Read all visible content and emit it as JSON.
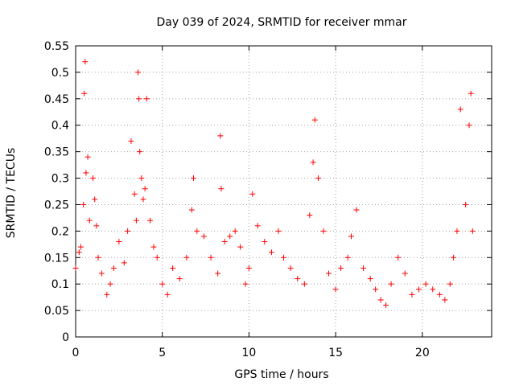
{
  "chart_data": {
    "type": "scatter",
    "title": "Day 039 of 2024, SRMTID for receiver mmar",
    "xlabel": "GPS time / hours",
    "ylabel": "SRMTID / TECUs",
    "xlim": [
      0,
      24
    ],
    "ylim": [
      0,
      0.55
    ],
    "xticks": [
      0,
      5,
      10,
      15,
      20
    ],
    "yticks": [
      0,
      0.05,
      0.1,
      0.15,
      0.2,
      0.25,
      0.3,
      0.35,
      0.4,
      0.45,
      0.5,
      0.55
    ],
    "xtick_labels": [
      "0",
      "5",
      "10",
      "15",
      "20"
    ],
    "ytick_labels": [
      "0",
      "0.05",
      "0.1",
      "0.15",
      "0.2",
      "0.25",
      "0.3",
      "0.35",
      "0.4",
      "0.45",
      "0.5",
      "0.55"
    ],
    "grid": true,
    "marker": "+",
    "color": "#ff0000",
    "series": [
      {
        "name": "SRMTID",
        "x": [
          0.0,
          0.2,
          0.3,
          0.45,
          0.5,
          0.55,
          0.6,
          0.7,
          0.8,
          1.0,
          1.1,
          1.2,
          1.3,
          1.5,
          1.8,
          2.0,
          2.2,
          2.5,
          2.8,
          3.0,
          3.2,
          3.4,
          3.5,
          3.6,
          3.65,
          3.7,
          3.8,
          3.9,
          4.0,
          4.1,
          4.3,
          4.5,
          4.7,
          5.0,
          5.3,
          5.6,
          6.0,
          6.4,
          6.7,
          6.8,
          7.0,
          7.4,
          7.8,
          8.2,
          8.35,
          8.4,
          8.6,
          8.9,
          9.2,
          9.5,
          9.8,
          10.0,
          10.2,
          10.5,
          10.9,
          11.3,
          11.7,
          12.0,
          12.4,
          12.8,
          13.2,
          13.5,
          13.7,
          13.8,
          14.0,
          14.3,
          14.6,
          15.0,
          15.3,
          15.7,
          15.9,
          16.2,
          16.6,
          17.0,
          17.3,
          17.6,
          17.9,
          18.2,
          18.6,
          19.0,
          19.4,
          19.8,
          20.2,
          20.6,
          21.0,
          21.3,
          21.6,
          21.8,
          22.0,
          22.2,
          22.5,
          22.7,
          22.8,
          22.9
        ],
        "y": [
          0.13,
          0.16,
          0.17,
          0.25,
          0.46,
          0.52,
          0.31,
          0.34,
          0.22,
          0.3,
          0.26,
          0.21,
          0.15,
          0.12,
          0.08,
          0.1,
          0.13,
          0.18,
          0.14,
          0.2,
          0.37,
          0.27,
          0.22,
          0.5,
          0.45,
          0.35,
          0.3,
          0.26,
          0.28,
          0.45,
          0.22,
          0.17,
          0.15,
          0.1,
          0.08,
          0.13,
          0.11,
          0.15,
          0.24,
          0.3,
          0.2,
          0.19,
          0.15,
          0.12,
          0.38,
          0.28,
          0.18,
          0.19,
          0.2,
          0.17,
          0.1,
          0.13,
          0.27,
          0.21,
          0.18,
          0.16,
          0.2,
          0.15,
          0.13,
          0.11,
          0.1,
          0.23,
          0.33,
          0.41,
          0.3,
          0.2,
          0.12,
          0.09,
          0.13,
          0.15,
          0.19,
          0.24,
          0.13,
          0.11,
          0.09,
          0.07,
          0.06,
          0.1,
          0.15,
          0.12,
          0.08,
          0.09,
          0.1,
          0.09,
          0.08,
          0.07,
          0.1,
          0.15,
          0.2,
          0.43,
          0.25,
          0.4,
          0.46,
          0.2
        ]
      }
    ]
  }
}
